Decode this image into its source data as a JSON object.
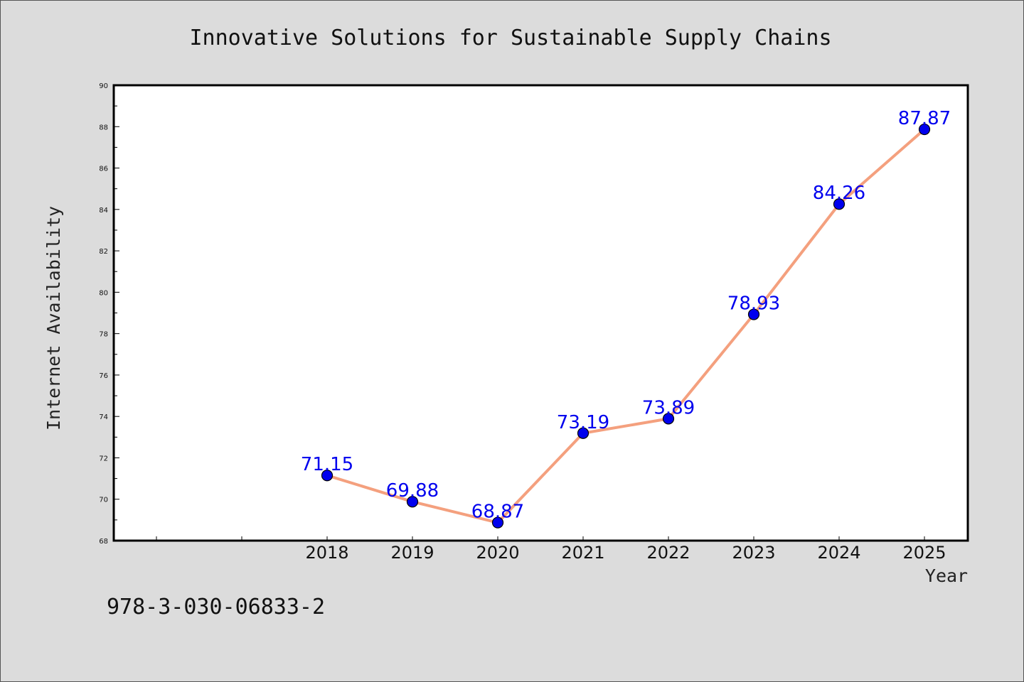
{
  "page": {
    "background_color": "#dcdcdc",
    "footnote": "978-3-030-06833-2"
  },
  "chart_data": {
    "type": "line",
    "title": "Innovative Solutions for Sustainable Supply Chains",
    "xlabel": "Year",
    "ylabel": "Internet Availability",
    "categories": [
      "2018",
      "2019",
      "2020",
      "2021",
      "2022",
      "2023",
      "2024",
      "2025"
    ],
    "x_axis_leading_unlabeled_slots": 2,
    "series": [
      {
        "values": [
          71.15,
          69.88,
          68.87,
          73.19,
          73.89,
          78.93,
          84.26,
          87.87
        ],
        "data_labels": [
          "71.15",
          "69.88",
          "68.87",
          "73.19",
          "73.89",
          "78.93",
          "84.26",
          "87.87"
        ],
        "line_color": "#f4a07e",
        "marker_color": "#0000ee",
        "label_color": "#0000ee"
      }
    ],
    "ylim": [
      68,
      90
    ],
    "y_ticks": [
      "68",
      "70",
      "72",
      "74",
      "76",
      "78",
      "80",
      "82",
      "84",
      "86",
      "88",
      "90"
    ],
    "y_minor_step": 1,
    "grid": false,
    "legend": "none",
    "plot_background_color": "#ffffff",
    "frame_color": "#000000"
  }
}
